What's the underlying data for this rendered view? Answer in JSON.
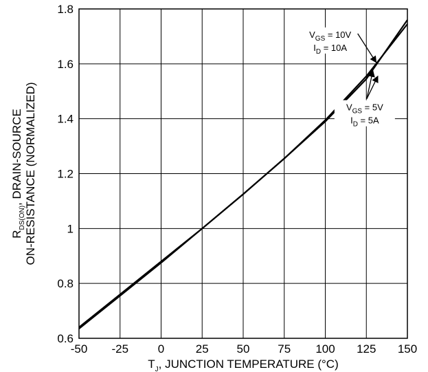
{
  "chart_data": {
    "type": "line",
    "xlabel": {
      "pre": "T",
      "sub": "J",
      "post": ", JUNCTION TEMPERATURE (°C)"
    },
    "ylabel": {
      "line1_pre": "R",
      "line1_sub": "DS(ON)",
      "line1_post": ", DRAIN-SOURCE",
      "line2": "ON-RESISTANCE (NORMALIZED)"
    },
    "xlim": [
      -50,
      150
    ],
    "ylim": [
      0.6,
      1.8
    ],
    "x_ticks": [
      -50,
      -25,
      0,
      25,
      50,
      75,
      100,
      125,
      150
    ],
    "y_ticks": [
      0.6,
      0.8,
      1,
      1.2,
      1.4,
      1.6,
      1.8
    ],
    "x_tick_labels": [
      "-50",
      "-25",
      "0",
      "25",
      "50",
      "75",
      "100",
      "125",
      "150"
    ],
    "y_tick_labels": [
      "0.6",
      "0.8",
      "1",
      "1.2",
      "1.4",
      "1.6",
      "1.8"
    ],
    "grid": true,
    "series": [
      {
        "x": [
          -50,
          -25,
          0,
          25,
          50,
          75,
          100,
          125,
          150
        ],
        "y": [
          0.64,
          0.76,
          0.88,
          1.0,
          1.125,
          1.255,
          1.395,
          1.555,
          1.745
        ]
      },
      {
        "x": [
          -50,
          -25,
          0,
          25,
          50,
          75,
          100,
          125,
          150
        ],
        "y": [
          0.635,
          0.755,
          0.875,
          1.0,
          1.125,
          1.255,
          1.39,
          1.545,
          1.76
        ]
      }
    ],
    "annotations": [
      {
        "lines": [
          {
            "pre": "V",
            "sub": "GS",
            "post": " = 10V"
          },
          {
            "pre": "I",
            "sub": "D",
            "post": " = 10A"
          }
        ],
        "anchor_x": 103,
        "anchor_y": 1.685,
        "arrows_to": [
          {
            "x": 131,
            "y": 1.605
          }
        ]
      },
      {
        "lines": [
          {
            "pre": "V",
            "sub": "GS",
            "post": " = 5V"
          },
          {
            "pre": "I",
            "sub": "D",
            "post": " = 5A"
          }
        ],
        "anchor_x": 124,
        "anchor_y": 1.42,
        "arrows_to": [
          {
            "x": 129,
            "y": 1.575
          },
          {
            "x": 132,
            "y": 1.555
          }
        ]
      }
    ]
  }
}
